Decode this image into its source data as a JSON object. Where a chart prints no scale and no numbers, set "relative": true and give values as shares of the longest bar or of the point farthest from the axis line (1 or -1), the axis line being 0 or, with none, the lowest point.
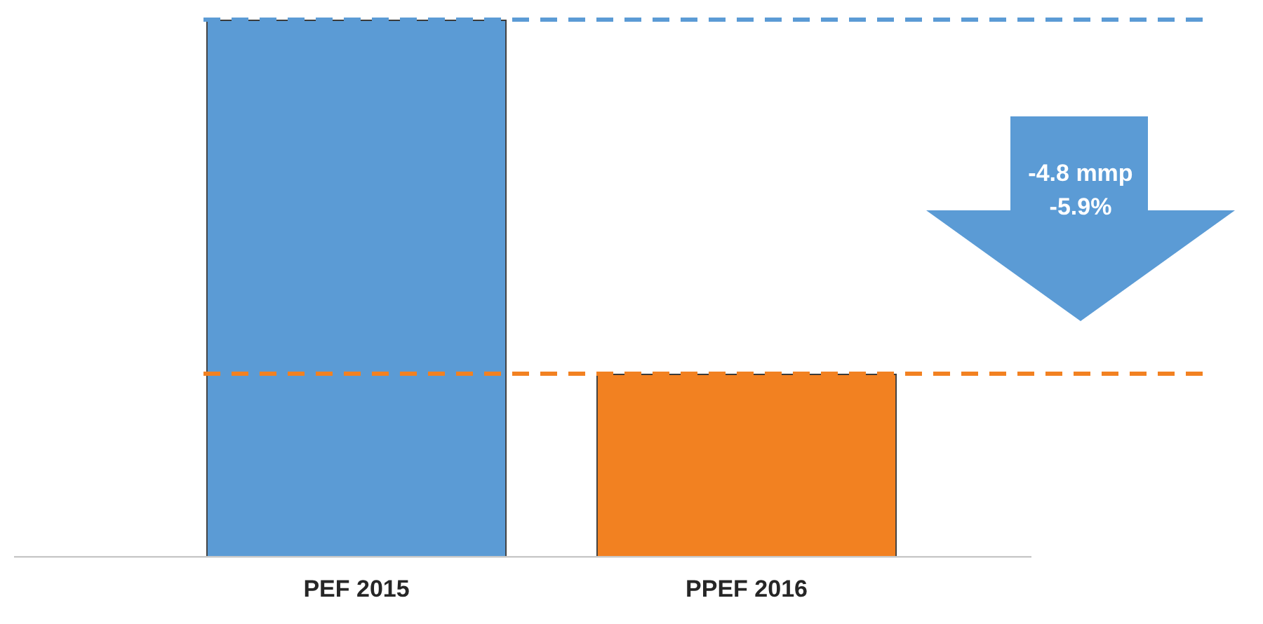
{
  "chart_data": {
    "type": "bar",
    "relative": true,
    "categories": [
      "PEF 2015",
      "PPEF 2016"
    ],
    "values": [
      1,
      0.34
    ],
    "colors": [
      "#5b9bd5",
      "#f28121"
    ],
    "ref_lines": [
      {
        "axis": "y",
        "value": 1,
        "color": "#5b9bd5",
        "line_style": "dashed"
      },
      {
        "axis": "y",
        "value": 0.34,
        "color": "#f28121",
        "line_style": "dashed"
      }
    ],
    "annotations": [
      "-4.8 mmp",
      "-5.9%"
    ],
    "legend": false,
    "grid": false
  }
}
